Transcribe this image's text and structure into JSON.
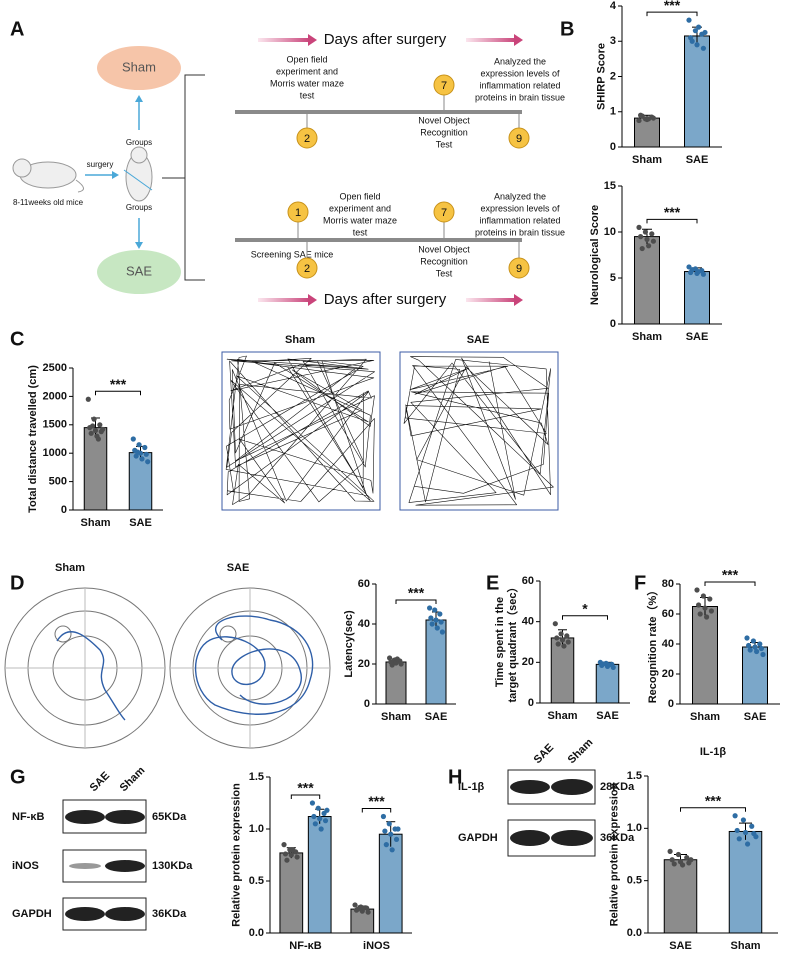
{
  "panel_labels": [
    "A",
    "B",
    "C",
    "D",
    "E",
    "F",
    "G",
    "H"
  ],
  "diagram": {
    "groups": [
      "Sham",
      "SAE"
    ],
    "group_labels": [
      "Groups",
      "Groups"
    ],
    "surgery": "surgery",
    "mice": "8-11weeks old mice",
    "timelines": [
      {
        "heading": "Days after surgery",
        "events": [
          {
            "day": 2,
            "lines": [
              "Open field",
              "experiment and",
              "Morris water maze",
              "test"
            ]
          },
          {
            "day": 7,
            "lines": [
              "Novel Object",
              "Recognition",
              "Test"
            ]
          },
          {
            "day": 9,
            "lines": [
              "Analyzed the",
              "expression levels of",
              "inflammation related",
              "proteins in brain tissue"
            ]
          }
        ]
      },
      {
        "heading": "Days after surgery",
        "events": [
          {
            "day": 1,
            "lines": [
              "Screening SAE mice"
            ]
          },
          {
            "day": 2,
            "lines": [
              "Open field",
              "experiment and",
              "Morris water maze",
              "test"
            ]
          },
          {
            "day": 7,
            "lines": [
              "Novel Object",
              "Recognition",
              "Test"
            ]
          },
          {
            "day": 9,
            "lines": [
              "Analyzed the",
              "expression levels of",
              "inflammation related",
              "proteins in brain tissue"
            ]
          }
        ]
      }
    ]
  },
  "mazes": {
    "open_field": [
      "Sham",
      "SAE"
    ],
    "water_maze": [
      "Sham",
      "SAE"
    ]
  },
  "blots": [
    {
      "columns": [
        "SAE",
        "Sham"
      ],
      "rows": [
        {
          "protein": "NF-κB",
          "size": "65KDa"
        },
        {
          "protein": "iNOS",
          "size": "130KDa"
        },
        {
          "protein": "GAPDH",
          "size": "36KDa"
        }
      ]
    },
    {
      "columns": [
        "SAE",
        "Sham"
      ],
      "rows": [
        {
          "protein": "IL-1β",
          "size": "28KDa"
        },
        {
          "protein": "GAPDH",
          "size": "36KDa"
        }
      ]
    }
  ],
  "chart_data": [
    {
      "type": "bar",
      "ylabel": "SHIRP Score",
      "categories": [
        "Sham",
        "SAE"
      ],
      "values": [
        0.82,
        3.15
      ],
      "errors": [
        0.08,
        0.25
      ],
      "points": [
        [
          0.75,
          0.8,
          0.85,
          0.9,
          0.78,
          0.82,
          0.88,
          0.8
        ],
        [
          3.6,
          3.3,
          3.2,
          3.1,
          2.9,
          2.8,
          3.0,
          3.4,
          3.25
        ]
      ],
      "colors": [
        "#8c8c8c",
        "#7ba7c9"
      ],
      "point_colors": [
        "#4d4d4d",
        "#2e6da4"
      ],
      "ylim": [
        0,
        4
      ],
      "yticks": [
        0,
        1,
        2,
        3,
        4
      ],
      "significance": "***"
    },
    {
      "type": "bar",
      "ylabel": "Neurological Score",
      "categories": [
        "Sham",
        "SAE"
      ],
      "values": [
        9.5,
        5.7
      ],
      "errors": [
        0.8,
        0.4
      ],
      "points": [
        [
          10.5,
          10,
          9.8,
          9.5,
          9.2,
          9,
          8.2,
          8.5
        ],
        [
          6.2,
          6,
          5.8,
          5.6,
          5.5,
          5.4,
          5.9,
          5.7
        ]
      ],
      "colors": [
        "#8c8c8c",
        "#7ba7c9"
      ],
      "point_colors": [
        "#4d4d4d",
        "#2e6da4"
      ],
      "ylim": [
        0,
        15
      ],
      "yticks": [
        0,
        5,
        10,
        15
      ],
      "significance": "***"
    },
    {
      "type": "bar",
      "ylabel": "Total distance travelled (cm)",
      "categories": [
        "Sham",
        "SAE"
      ],
      "values": [
        1450,
        1010
      ],
      "errors": [
        170,
        110
      ],
      "points": [
        [
          1950,
          1600,
          1500,
          1450,
          1400,
          1380,
          1350,
          1300,
          1420,
          1480,
          1250
        ],
        [
          1250,
          1150,
          1100,
          1050,
          1000,
          980,
          950,
          900,
          850,
          1020
        ]
      ],
      "colors": [
        "#8c8c8c",
        "#7ba7c9"
      ],
      "point_colors": [
        "#4d4d4d",
        "#2e6da4"
      ],
      "ylim": [
        0,
        2500
      ],
      "yticks": [
        0,
        500,
        1000,
        1500,
        2000,
        2500
      ],
      "significance": "***"
    },
    {
      "type": "bar",
      "ylabel": "Latency(sec)",
      "categories": [
        "Sham",
        "SAE"
      ],
      "values": [
        21,
        42
      ],
      "errors": [
        1.5,
        4
      ],
      "points": [
        [
          23,
          22,
          21.5,
          21,
          20.5,
          20,
          19.5,
          22.5
        ],
        [
          48,
          47,
          45,
          43,
          42,
          41,
          40,
          38,
          36
        ]
      ],
      "colors": [
        "#8c8c8c",
        "#7ba7c9"
      ],
      "point_colors": [
        "#4d4d4d",
        "#2e6da4"
      ],
      "ylim": [
        0,
        60
      ],
      "yticks": [
        0,
        20,
        40,
        60
      ],
      "significance": "***"
    },
    {
      "type": "bar",
      "ylabel": [
        "Time spent in the",
        "target quadrant（sec）"
      ],
      "categories": [
        "Sham",
        "SAE"
      ],
      "values": [
        32,
        19
      ],
      "errors": [
        4,
        1
      ],
      "points": [
        [
          39,
          34,
          33,
          32,
          31,
          30,
          29,
          28
        ],
        [
          20,
          19.5,
          19,
          18.5,
          18,
          17.5,
          19.2,
          18.8
        ]
      ],
      "colors": [
        "#8c8c8c",
        "#7ba7c9"
      ],
      "point_colors": [
        "#4d4d4d",
        "#2e6da4"
      ],
      "ylim": [
        0,
        60
      ],
      "yticks": [
        0,
        20,
        40,
        60
      ],
      "significance": "*"
    },
    {
      "type": "bar",
      "ylabel": "Recognition rate（%）",
      "categories": [
        "Sham",
        "SAE"
      ],
      "values": [
        65,
        38
      ],
      "errors": [
        6,
        3
      ],
      "points": [
        [
          76,
          72,
          70,
          66,
          64,
          62,
          60,
          58
        ],
        [
          44,
          42,
          40,
          39,
          38,
          37,
          36,
          35,
          33
        ]
      ],
      "colors": [
        "#8c8c8c",
        "#7ba7c9"
      ],
      "point_colors": [
        "#4d4d4d",
        "#2e6da4"
      ],
      "ylim": [
        0,
        80
      ],
      "yticks": [
        0,
        20,
        40,
        60,
        80
      ],
      "significance": "***"
    },
    {
      "type": "bar",
      "ylabel": "Relative protein expression",
      "categories": [
        "NF-κB",
        "iNOS"
      ],
      "series": [
        {
          "color": "#8c8c8c",
          "point_color": "#4d4d4d",
          "values": [
            0.77,
            0.23
          ],
          "errors": [
            0.05,
            0.03
          ],
          "points": [
            [
              0.85,
              0.8,
              0.78,
              0.76,
              0.75,
              0.73,
              0.7,
              0.8
            ],
            [
              0.27,
              0.25,
              0.24,
              0.22,
              0.21,
              0.2,
              0.23,
              0.24
            ]
          ]
        },
        {
          "color": "#7ba7c9",
          "point_color": "#2e6da4",
          "values": [
            1.12,
            0.95
          ],
          "errors": [
            0.07,
            0.12
          ],
          "points": [
            [
              1.25,
              1.2,
              1.15,
              1.12,
              1.1,
              1.08,
              1.05,
              1.0,
              1.18
            ],
            [
              1.12,
              1.05,
              1.0,
              0.98,
              0.95,
              0.9,
              0.85,
              0.8,
              1.0
            ]
          ]
        }
      ],
      "ylim": [
        0,
        1.5
      ],
      "yticks": [
        {
          "value": 0,
          "label": "0.0"
        },
        0.5,
        {
          "value": 1,
          "label": "1.0"
        },
        1.5
      ],
      "significance": [
        "***",
        "***"
      ]
    },
    {
      "type": "bar",
      "title": "IL-1β",
      "ylabel": "Relative protein expression",
      "categories": [
        "SAE",
        "Sham"
      ],
      "values": [
        0.7,
        0.97
      ],
      "errors": [
        0.05,
        0.08
      ],
      "points": [
        [
          0.78,
          0.75,
          0.72,
          0.7,
          0.68,
          0.67,
          0.66,
          0.65,
          0.7
        ],
        [
          1.12,
          1.08,
          1.02,
          0.98,
          0.96,
          0.95,
          0.9,
          0.85,
          0.92
        ]
      ],
      "colors": [
        "#8c8c8c",
        "#7ba7c9"
      ],
      "point_colors": [
        "#4d4d4d",
        "#2e6da4"
      ],
      "ylim": [
        0,
        1.5
      ],
      "yticks": [
        {
          "value": 0,
          "label": "0.0"
        },
        0.5,
        {
          "value": 1,
          "label": "1.0"
        },
        1.5
      ],
      "significance": "***"
    }
  ]
}
